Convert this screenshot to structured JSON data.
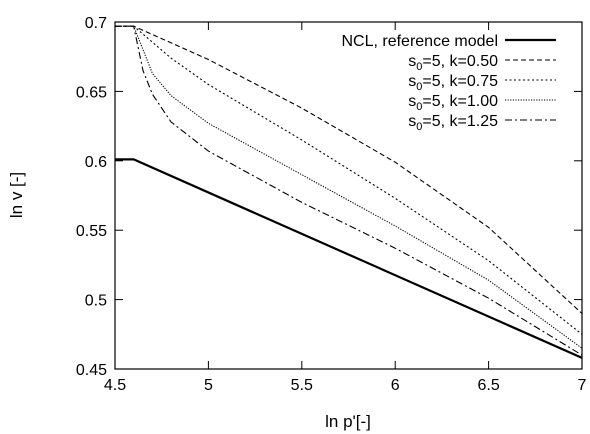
{
  "chart_data": {
    "type": "line",
    "title": "",
    "xlabel": "ln p'[-]",
    "ylabel": "ln v [-]",
    "xlim": [
      4.5,
      7
    ],
    "ylim": [
      0.45,
      0.7
    ],
    "x_ticks": [
      4.5,
      5,
      5.5,
      6,
      6.5,
      7
    ],
    "x_tick_labels": [
      "4.5",
      "5",
      "5.5",
      "6",
      "6.5",
      "7"
    ],
    "y_ticks": [
      0.45,
      0.5,
      0.55,
      0.6,
      0.65,
      0.7
    ],
    "y_tick_labels": [
      "0.45",
      "0.5",
      "0.55",
      "0.6",
      "0.65",
      "0.7"
    ],
    "grid": false,
    "legend_position": "top-right",
    "series": [
      {
        "name": "NCL, reference model",
        "name_base": "NCL, reference model",
        "name_sub": "",
        "name_rest": "",
        "style": "solid",
        "x": [
          4.5,
          4.6,
          7.0
        ],
        "y": [
          0.601,
          0.601,
          0.458
        ]
      },
      {
        "name": "s0=5, k=0.50",
        "name_base": "s",
        "name_sub": "0",
        "name_rest": "=5, k=0.50",
        "style": "dashed",
        "x": [
          4.5,
          4.6,
          5.0,
          5.5,
          6.0,
          6.5,
          7.0
        ],
        "y": [
          0.697,
          0.697,
          0.673,
          0.638,
          0.599,
          0.552,
          0.49
        ]
      },
      {
        "name": "s0=5, k=0.75",
        "name_base": "s",
        "name_sub": "0",
        "name_rest": "=5, k=0.75",
        "style": "dotted",
        "x": [
          4.5,
          4.6,
          4.8,
          5.0,
          5.5,
          6.0,
          6.5,
          7.0
        ],
        "y": [
          0.697,
          0.697,
          0.674,
          0.655,
          0.615,
          0.573,
          0.528,
          0.475
        ]
      },
      {
        "name": "s0=5, k=1.00",
        "name_base": "s",
        "name_sub": "0",
        "name_rest": "=5, k=1.00",
        "style": "finedot",
        "x": [
          4.5,
          4.6,
          4.7,
          4.8,
          5.0,
          5.5,
          6.0,
          6.5,
          7.0
        ],
        "y": [
          0.697,
          0.697,
          0.663,
          0.647,
          0.627,
          0.59,
          0.553,
          0.514,
          0.465
        ]
      },
      {
        "name": "s0=5, k=1.25",
        "name_base": "s",
        "name_sub": "0",
        "name_rest": "=5, k=1.25",
        "style": "dashdot",
        "x": [
          4.5,
          4.6,
          4.65,
          4.7,
          4.8,
          5.0,
          5.5,
          6.0,
          6.5,
          7.0
        ],
        "y": [
          0.697,
          0.697,
          0.665,
          0.648,
          0.628,
          0.607,
          0.57,
          0.537,
          0.501,
          0.46
        ]
      }
    ]
  }
}
